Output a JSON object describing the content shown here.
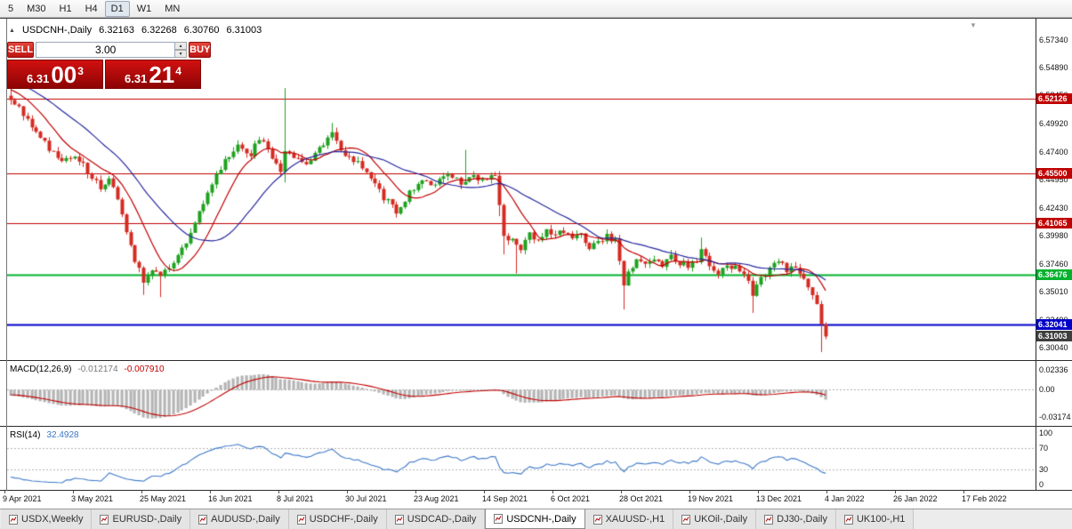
{
  "toolbar": {
    "timeframes": [
      "5",
      "M30",
      "H1",
      "H4",
      "D1",
      "W1",
      "MN"
    ],
    "active": "D1"
  },
  "icons": {
    "collapse": "▲",
    "spin_up": "▲",
    "spin_down": "▼",
    "shift_marker": "▼"
  },
  "chart_header": {
    "symbol": "USDCNH-,Daily",
    "open": "6.32163",
    "high": "6.32268",
    "low": "6.30760",
    "close": "6.31003"
  },
  "one_click_trading": {
    "sell_label": "SELL",
    "buy_label": "BUY",
    "volume": "3.00",
    "sell_price": {
      "prefix": "6.31",
      "big": "00",
      "sup": "3"
    },
    "buy_price": {
      "prefix": "6.31",
      "big": "21",
      "sup": "4"
    }
  },
  "tab_bar": {
    "tabs": [
      "USDX,Weekly",
      "EURUSD-,Daily",
      "AUDUSD-,Daily",
      "USDCHF-,Daily",
      "USDCAD-,Daily",
      "USDCNH-,Daily",
      "XAUUSD-,H1",
      "UKOil-,Daily",
      "DJ30-,Daily",
      "UK100-,H1"
    ],
    "active_index": 5
  },
  "chart_data": [
    {
      "type": "candlestick",
      "symbol": "USDCNH-",
      "timeframe": "Daily",
      "ohlc_current": {
        "open": 6.32163,
        "high": 6.32268,
        "low": 6.3076,
        "close": 6.31003
      },
      "ylim": [
        6.293,
        6.588
      ],
      "y_axis_ticks": [
        "6.57340",
        "6.54890",
        "6.52450",
        "6.49920",
        "6.47400",
        "6.44950",
        "6.42430",
        "6.39980",
        "6.37460",
        "6.35010",
        "6.32490",
        "6.30040"
      ],
      "x_labels": [
        "9 Apr 2021",
        "3 May 2021",
        "25 May 2021",
        "16 Jun 2021",
        "8 Jul 2021",
        "30 Jul 2021",
        "23 Aug 2021",
        "14 Sep 2021",
        "6 Oct 2021",
        "28 Oct 2021",
        "19 Nov 2021",
        "13 Dec 2021",
        "4 Jan 2022",
        "26 Jan 2022",
        "17 Feb 2022"
      ],
      "levels": [
        {
          "price": 6.52126,
          "text": "6.52126",
          "color": "#C00000",
          "width": 1,
          "kind": "resistance"
        },
        {
          "price": 6.455,
          "text": "6.45500",
          "color": "#C00000",
          "width": 1,
          "kind": "resistance"
        },
        {
          "price": 6.41065,
          "text": "6.41065",
          "color": "#C00000",
          "width": 1,
          "kind": "resistance"
        },
        {
          "price": 6.36476,
          "text": "6.36476",
          "color": "#00B22C",
          "width": 2,
          "kind": "support"
        },
        {
          "price": 6.32041,
          "text": "6.32041",
          "color": "#0000C8",
          "width": 2,
          "kind": "support"
        }
      ],
      "current_badge": {
        "price": 6.31003,
        "text": "6.31003",
        "color": "#3F3F3F"
      },
      "up_color": "#1FA11F",
      "down_color": "#D42B22",
      "moving_averages": [
        {
          "period": 10,
          "color": "#C00000"
        },
        {
          "period": 24,
          "color": "#26269E"
        }
      ],
      "bars_total": 221,
      "bars_prehistory": 30,
      "close_path_anchors": [
        [
          0,
          6.558
        ],
        [
          8,
          6.549
        ],
        [
          16,
          6.541
        ],
        [
          24,
          6.533
        ],
        [
          29,
          6.527
        ],
        [
          30,
          6.523
        ],
        [
          33,
          6.507
        ],
        [
          36,
          6.493
        ],
        [
          39,
          6.478
        ],
        [
          42,
          6.468
        ],
        [
          45,
          6.472
        ],
        [
          48,
          6.457
        ],
        [
          51,
          6.443
        ],
        [
          53,
          6.452
        ],
        [
          55,
          6.429
        ],
        [
          57,
          6.405
        ],
        [
          59,
          6.379
        ],
        [
          61,
          6.36
        ],
        [
          63,
          6.371
        ],
        [
          65,
          6.362
        ],
        [
          68,
          6.376
        ],
        [
          71,
          6.392
        ],
        [
          74,
          6.419
        ],
        [
          77,
          6.445
        ],
        [
          80,
          6.467
        ],
        [
          83,
          6.48
        ],
        [
          86,
          6.473
        ],
        [
          88,
          6.487
        ],
        [
          91,
          6.469
        ],
        [
          93,
          6.454
        ],
        [
          94,
          6.477
        ],
        [
          96,
          6.471
        ],
        [
          99,
          6.464
        ],
        [
          102,
          6.477
        ],
        [
          105,
          6.489
        ],
        [
          108,
          6.473
        ],
        [
          111,
          6.464
        ],
        [
          114,
          6.449
        ],
        [
          117,
          6.434
        ],
        [
          120,
          6.422
        ],
        [
          123,
          6.438
        ],
        [
          126,
          6.451
        ],
        [
          129,
          6.445
        ],
        [
          132,
          6.452
        ],
        [
          135,
          6.448
        ],
        [
          138,
          6.452
        ],
        [
          141,
          6.449
        ],
        [
          143,
          6.455
        ],
        [
          144,
          6.425
        ],
        [
          145,
          6.398
        ],
        [
          147,
          6.394
        ],
        [
          149,
          6.389
        ],
        [
          151,
          6.401
        ],
        [
          153,
          6.394
        ],
        [
          155,
          6.405
        ],
        [
          157,
          6.399
        ],
        [
          159,
          6.404
        ],
        [
          161,
          6.396
        ],
        [
          163,
          6.401
        ],
        [
          165,
          6.39
        ],
        [
          167,
          6.394
        ],
        [
          169,
          6.4
        ],
        [
          171,
          6.395
        ],
        [
          173,
          6.355
        ],
        [
          174,
          6.369
        ],
        [
          176,
          6.377
        ],
        [
          178,
          6.372
        ],
        [
          180,
          6.38
        ],
        [
          182,
          6.374
        ],
        [
          184,
          6.382
        ],
        [
          186,
          6.376
        ],
        [
          188,
          6.371
        ],
        [
          190,
          6.378
        ],
        [
          191,
          6.388
        ],
        [
          193,
          6.373
        ],
        [
          195,
          6.367
        ],
        [
          197,
          6.374
        ],
        [
          200,
          6.368
        ],
        [
          202,
          6.358
        ],
        [
          203,
          6.347
        ],
        [
          205,
          6.361
        ],
        [
          207,
          6.372
        ],
        [
          209,
          6.378
        ],
        [
          211,
          6.37
        ],
        [
          213,
          6.374
        ],
        [
          215,
          6.361
        ],
        [
          217,
          6.349
        ],
        [
          218,
          6.338
        ],
        [
          219,
          6.3216
        ],
        [
          220,
          6.31003
        ]
      ],
      "wick_events": [
        {
          "bar": 30,
          "high": 6.532
        },
        {
          "bar": 61,
          "low": 6.347
        },
        {
          "bar": 65,
          "low": 6.345
        },
        {
          "bar": 94,
          "high": 6.531,
          "low": 6.447
        },
        {
          "bar": 105,
          "high": 6.5
        },
        {
          "bar": 136,
          "high": 6.476
        },
        {
          "bar": 144,
          "high": 6.457,
          "low": 6.417
        },
        {
          "bar": 145,
          "low": 6.383
        },
        {
          "bar": 148,
          "low": 6.366
        },
        {
          "bar": 173,
          "low": 6.334
        },
        {
          "bar": 191,
          "high": 6.398
        },
        {
          "bar": 203,
          "low": 6.331
        },
        {
          "bar": 219,
          "low": 6.2962
        },
        {
          "bar": 220,
          "high": 6.3227,
          "low": 6.3076
        }
      ]
    },
    {
      "type": "macd",
      "label": "MACD(12,26,9)",
      "values": [
        "-0.012174",
        "-0.007910"
      ],
      "params": [
        12,
        26,
        9
      ],
      "ticks": [
        "0.02336",
        "0.00",
        "-0.03174"
      ],
      "ylim": [
        -0.0355,
        0.025
      ],
      "histogram_color": "#B4B4B4",
      "signal_color": "#C00000"
    },
    {
      "type": "rsi",
      "label": "RSI(14)",
      "value": "32.4928",
      "period": 14,
      "ticks": [
        "100",
        "70",
        "30",
        "0"
      ],
      "levels": [
        70,
        30
      ],
      "ylim": [
        0,
        100
      ],
      "line_color": "#3C78C8"
    }
  ]
}
